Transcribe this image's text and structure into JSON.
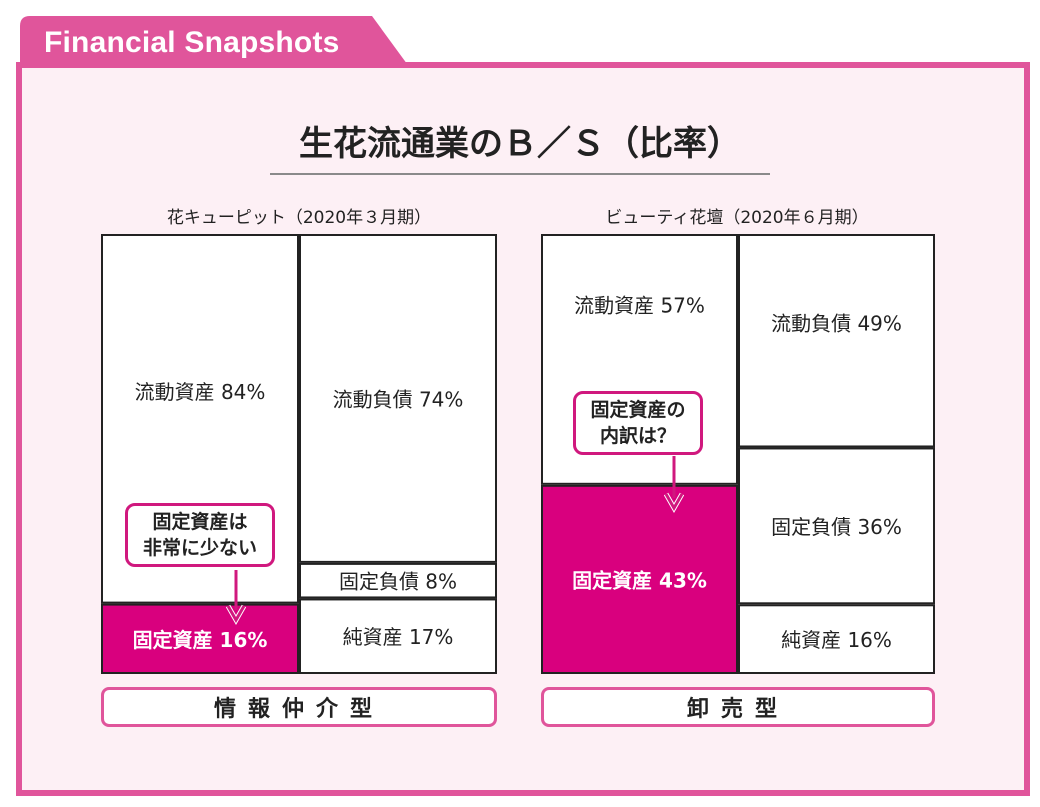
{
  "header": {
    "tab_label": "Financial Snapshots"
  },
  "main_title": "生花流通業のＢ／Ｓ（比率）",
  "colors": {
    "accent": "#e0559b",
    "fixed_asset_fill": "#d9007e",
    "frame_bg": "#fdf0f5"
  },
  "chart_data": [
    {
      "type": "bar",
      "title": "花キューピット（2020年３月期）",
      "assets": [
        {
          "name": "流動資産",
          "value": 84,
          "label": "流動資産 84%"
        },
        {
          "name": "固定資産",
          "value": 16,
          "label": "固定資産 16%",
          "highlight": true
        }
      ],
      "liabilities_equity": [
        {
          "name": "流動負債",
          "value": 74,
          "label": "流動負債 74%"
        },
        {
          "name": "固定負債",
          "value": 8,
          "label": "固定負債 8%"
        },
        {
          "name": "純資産",
          "value": 17,
          "label": "純資産 17%"
        }
      ],
      "callout": [
        "固定資産は",
        "非常に少ない"
      ],
      "type_label": "情報仲介型"
    },
    {
      "type": "bar",
      "title": "ビューティ花壇（2020年６月期）",
      "assets": [
        {
          "name": "流動資産",
          "value": 57,
          "label": "流動資産 57%"
        },
        {
          "name": "固定資産",
          "value": 43,
          "label": "固定資産 43%",
          "highlight": true
        }
      ],
      "liabilities_equity": [
        {
          "name": "流動負債",
          "value": 49,
          "label": "流動負債 49%"
        },
        {
          "name": "固定負債",
          "value": 36,
          "label": "固定負債 36%"
        },
        {
          "name": "純資産",
          "value": 16,
          "label": "純資産 16%"
        }
      ],
      "callout": [
        "固定資産の",
        "内訳は？"
      ],
      "type_label": "卸売型"
    }
  ]
}
